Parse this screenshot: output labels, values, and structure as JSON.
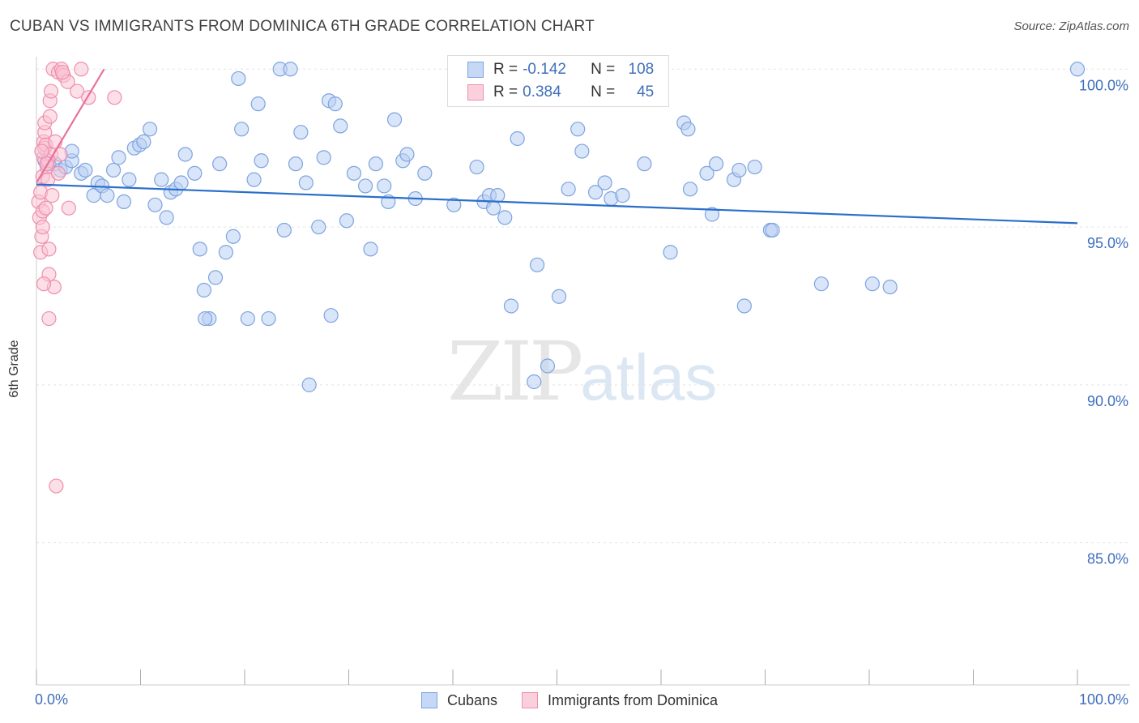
{
  "title": "CUBAN VS IMMIGRANTS FROM DOMINICA 6TH GRADE CORRELATION CHART",
  "source": "Source: ZipAtlas.com",
  "watermark": {
    "zip": "ZIP",
    "atlas": "atlas"
  },
  "legend": {
    "r_label": "R =",
    "n_label": "N =",
    "rows": [
      {
        "series": "Cubans",
        "r": "-0.142",
        "n": "108",
        "color": "#a9c4ee"
      },
      {
        "series": "Immigrants from Dominica",
        "r": "0.384",
        "n": "45",
        "color": "#f7b7cc"
      }
    ]
  },
  "colors": {
    "blue_fill": "#b9cff2",
    "blue_edge": "#7ea4e0",
    "blue_line": "#2a6fcc",
    "pink_fill": "#f9c4d4",
    "pink_edge": "#ee8fb0",
    "pink_line": "#e8719a",
    "axis_label": "#3f6fbd",
    "grid": "#e3e3e3"
  },
  "chart_data": {
    "type": "scatter",
    "title": "CUBAN VS IMMIGRANTS FROM DOMINICA 6TH GRADE CORRELATION CHART",
    "xlabel": "",
    "ylabel": "6th Grade",
    "xlim": [
      0,
      100
    ],
    "ylim": [
      80.5,
      100.7
    ],
    "x_tick_labels": [
      "0.0%",
      "100.0%"
    ],
    "y_ticks": [
      100,
      95,
      90,
      85
    ],
    "y_tick_labels": [
      "100.0%",
      "95.0%",
      "90.0%",
      "85.0%"
    ],
    "grid": true,
    "series": [
      {
        "name": "Cubans",
        "trend": {
          "x": [
            0,
            100
          ],
          "y": [
            96.35,
            95.12
          ]
        },
        "points": [
          [
            0.8,
            97.1
          ],
          [
            1.2,
            97.0
          ],
          [
            1.8,
            97.0
          ],
          [
            2.3,
            96.8
          ],
          [
            2.8,
            96.9
          ],
          [
            3.4,
            97.1
          ],
          [
            3.4,
            97.4
          ],
          [
            4.3,
            96.7
          ],
          [
            4.7,
            96.8
          ],
          [
            5.5,
            96.0
          ],
          [
            5.9,
            96.4
          ],
          [
            6.3,
            96.3
          ],
          [
            6.8,
            96.0
          ],
          [
            7.4,
            96.8
          ],
          [
            7.9,
            97.2
          ],
          [
            8.4,
            95.8
          ],
          [
            8.9,
            96.5
          ],
          [
            9.4,
            97.5
          ],
          [
            9.9,
            97.6
          ],
          [
            10.3,
            97.7
          ],
          [
            10.9,
            98.1
          ],
          [
            11.4,
            95.7
          ],
          [
            12.0,
            96.5
          ],
          [
            12.5,
            95.3
          ],
          [
            12.9,
            96.1
          ],
          [
            13.4,
            96.2
          ],
          [
            13.9,
            96.4
          ],
          [
            14.3,
            97.3
          ],
          [
            15.2,
            96.7
          ],
          [
            15.7,
            94.3
          ],
          [
            16.1,
            93.0
          ],
          [
            16.6,
            92.1
          ],
          [
            16.2,
            92.1
          ],
          [
            17.2,
            93.4
          ],
          [
            17.6,
            97.0
          ],
          [
            18.2,
            94.2
          ],
          [
            18.9,
            94.7
          ],
          [
            19.4,
            99.7
          ],
          [
            19.7,
            98.1
          ],
          [
            20.3,
            92.1
          ],
          [
            20.9,
            96.5
          ],
          [
            21.3,
            98.9
          ],
          [
            21.6,
            97.1
          ],
          [
            22.3,
            92.1
          ],
          [
            23.4,
            100.0
          ],
          [
            23.8,
            94.9
          ],
          [
            24.4,
            100.0
          ],
          [
            24.9,
            97.0
          ],
          [
            25.4,
            98.0
          ],
          [
            25.9,
            96.4
          ],
          [
            26.2,
            90.0
          ],
          [
            27.1,
            95.0
          ],
          [
            27.6,
            97.2
          ],
          [
            28.3,
            92.2
          ],
          [
            28.1,
            99.0
          ],
          [
            28.7,
            98.9
          ],
          [
            29.2,
            98.2
          ],
          [
            29.8,
            95.2
          ],
          [
            30.5,
            96.7
          ],
          [
            31.6,
            96.3
          ],
          [
            32.1,
            94.3
          ],
          [
            32.6,
            97.0
          ],
          [
            33.4,
            96.3
          ],
          [
            33.8,
            95.8
          ],
          [
            34.4,
            98.4
          ],
          [
            35.2,
            97.1
          ],
          [
            35.6,
            97.3
          ],
          [
            36.4,
            95.9
          ],
          [
            37.3,
            96.7
          ],
          [
            40.1,
            95.7
          ],
          [
            42.3,
            96.9
          ],
          [
            43.0,
            95.8
          ],
          [
            43.5,
            96.0
          ],
          [
            43.9,
            95.6
          ],
          [
            44.3,
            96.0
          ],
          [
            45.0,
            95.3
          ],
          [
            45.6,
            92.5
          ],
          [
            46.2,
            97.8
          ],
          [
            48.1,
            93.8
          ],
          [
            49.1,
            90.6
          ],
          [
            50.2,
            92.8
          ],
          [
            51.1,
            96.2
          ],
          [
            52.0,
            98.1
          ],
          [
            52.4,
            97.4
          ],
          [
            53.7,
            96.1
          ],
          [
            54.6,
            96.4
          ],
          [
            55.2,
            95.9
          ],
          [
            56.3,
            96.0
          ],
          [
            58.4,
            97.0
          ],
          [
            60.9,
            94.2
          ],
          [
            62.2,
            98.3
          ],
          [
            62.6,
            98.1
          ],
          [
            62.8,
            96.2
          ],
          [
            64.4,
            96.7
          ],
          [
            64.9,
            95.4
          ],
          [
            65.3,
            97.0
          ],
          [
            67.0,
            96.5
          ],
          [
            67.5,
            96.8
          ],
          [
            68.0,
            92.5
          ],
          [
            69.0,
            96.9
          ],
          [
            70.5,
            94.9
          ],
          [
            70.7,
            94.9
          ],
          [
            75.4,
            93.2
          ],
          [
            80.3,
            93.2
          ],
          [
            82.0,
            93.1
          ],
          [
            100.0,
            100.0
          ],
          [
            47.8,
            90.1
          ]
        ]
      },
      {
        "name": "Immigrants from Dominica",
        "trend": {
          "x": [
            0,
            6.5
          ],
          "y": [
            96.4,
            100.0
          ]
        },
        "points": [
          [
            0.2,
            95.8
          ],
          [
            0.3,
            95.3
          ],
          [
            0.4,
            96.1
          ],
          [
            0.4,
            94.2
          ],
          [
            0.5,
            94.7
          ],
          [
            0.6,
            95.5
          ],
          [
            0.6,
            96.6
          ],
          [
            0.7,
            97.2
          ],
          [
            0.7,
            97.7
          ],
          [
            0.8,
            97.5
          ],
          [
            0.8,
            98.0
          ],
          [
            0.8,
            98.3
          ],
          [
            0.9,
            97.6
          ],
          [
            0.9,
            95.6
          ],
          [
            1.0,
            96.9
          ],
          [
            1.1,
            97.1
          ],
          [
            1.1,
            96.5
          ],
          [
            1.2,
            93.5
          ],
          [
            1.2,
            94.3
          ],
          [
            1.2,
            92.1
          ],
          [
            1.3,
            98.5
          ],
          [
            1.3,
            99.0
          ],
          [
            1.4,
            99.3
          ],
          [
            1.4,
            97.3
          ],
          [
            1.5,
            96.0
          ],
          [
            1.6,
            100.0
          ],
          [
            1.7,
            93.1
          ],
          [
            1.8,
            97.7
          ],
          [
            1.9,
            86.8
          ],
          [
            2.1,
            99.9
          ],
          [
            2.1,
            96.7
          ],
          [
            2.3,
            97.3
          ],
          [
            2.4,
            100.0
          ],
          [
            2.6,
            99.8
          ],
          [
            3.0,
            99.6
          ],
          [
            3.1,
            95.6
          ],
          [
            3.9,
            99.3
          ],
          [
            4.3,
            100.0
          ],
          [
            5.0,
            99.1
          ],
          [
            7.5,
            99.1
          ],
          [
            0.5,
            97.4
          ],
          [
            0.6,
            95.0
          ],
          [
            0.7,
            93.2
          ],
          [
            1.0,
            97.0
          ],
          [
            2.5,
            99.9
          ]
        ]
      }
    ]
  }
}
